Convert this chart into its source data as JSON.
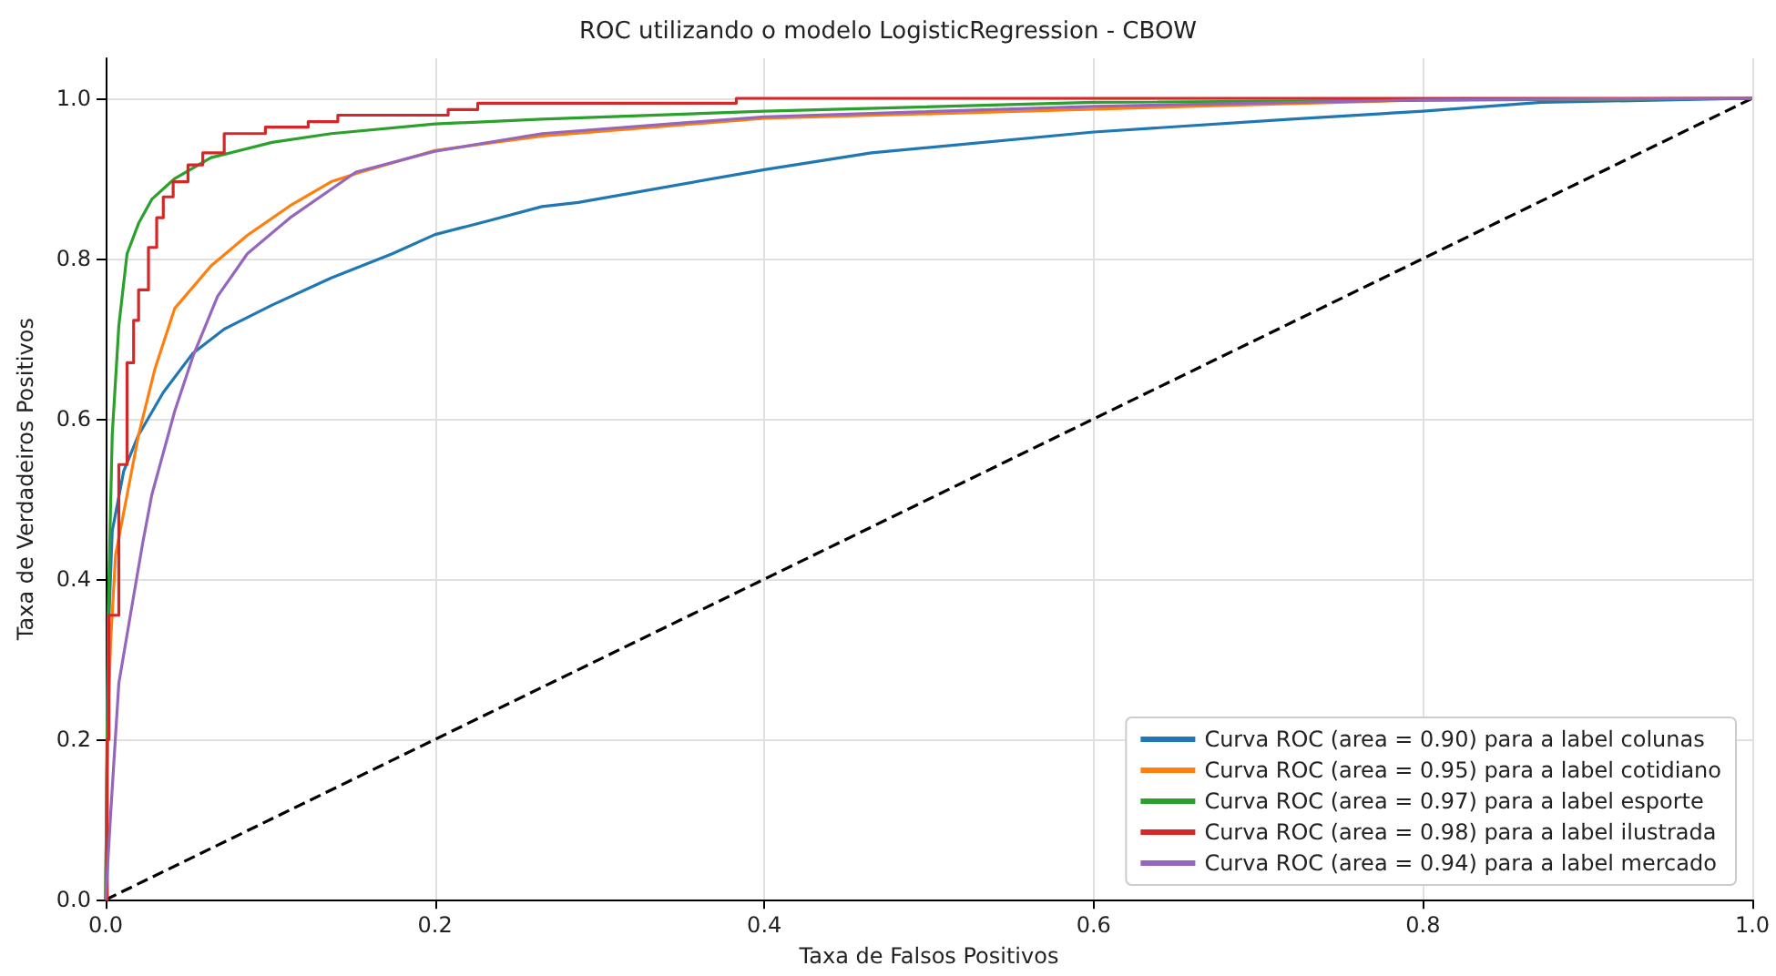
{
  "chart_data": {
    "type": "line",
    "title": "ROC utilizando o modelo LogisticRegression - CBOW",
    "xlabel": "Taxa de Falsos Positivos",
    "ylabel": "Taxa de Verdadeiros Positivos",
    "xlim": [
      0,
      1.0
    ],
    "ylim": [
      0,
      1.05
    ],
    "xticks": [
      {
        "value": 0,
        "label": "0.0"
      },
      {
        "value": 0.2,
        "label": "0.2"
      },
      {
        "value": 0.4,
        "label": "0.4"
      },
      {
        "value": 0.6,
        "label": "0.6"
      },
      {
        "value": 0.8,
        "label": "0.8"
      },
      {
        "value": 1,
        "label": "1.0"
      }
    ],
    "yticks": [
      {
        "value": 0,
        "label": "0.0"
      },
      {
        "value": 0.2,
        "label": "0.2"
      },
      {
        "value": 0.4,
        "label": "0.4"
      },
      {
        "value": 0.6,
        "label": "0.6"
      },
      {
        "value": 0.8,
        "label": "0.8"
      },
      {
        "value": 1,
        "label": "1.0"
      }
    ],
    "grid": true,
    "legend": "bottom right",
    "marker": "none",
    "line_style": "solid",
    "series": [
      {
        "name": "Curva ROC (area = 0.90) para a label colunas",
        "color": "#1f77b4",
        "x": [
          0,
          0.001,
          0.002,
          0.004,
          0.011,
          0.02,
          0.035,
          0.053,
          0.072,
          0.101,
          0.137,
          0.174,
          0.2,
          0.232,
          0.265,
          0.287,
          0.4,
          0.465,
          0.6,
          0.72,
          0.8,
          0.872,
          1.0
        ],
        "values": [
          0,
          0.25,
          0.35,
          0.46,
          0.535,
          0.58,
          0.633,
          0.682,
          0.712,
          0.742,
          0.776,
          0.806,
          0.83,
          0.847,
          0.865,
          0.87,
          0.911,
          0.932,
          0.958,
          0.974,
          0.984,
          0.995,
          1.0
        ]
      },
      {
        "name": "Curva ROC (area = 0.95) para a label cotidiano",
        "color": "#ff7f0e",
        "x": [
          0,
          0.001,
          0.003,
          0.006,
          0.013,
          0.02,
          0.03,
          0.042,
          0.064,
          0.086,
          0.112,
          0.137,
          0.155,
          0.2,
          0.265,
          0.4,
          0.6,
          0.8,
          1.0
        ],
        "values": [
          0,
          0.2,
          0.32,
          0.43,
          0.505,
          0.58,
          0.663,
          0.738,
          0.791,
          0.829,
          0.866,
          0.896,
          0.908,
          0.935,
          0.953,
          0.975,
          null,
          0.998,
          1.0
        ]
      },
      {
        "name": "Curva ROC (area = 0.97) para a label esporte",
        "color": "#2ca02c",
        "x": [
          0,
          0.001,
          0.0015,
          0.004,
          0.008,
          0.013,
          0.02,
          0.028,
          0.042,
          0.064,
          0.101,
          0.137,
          0.2,
          0.265,
          0.4,
          0.6,
          1.0
        ],
        "values": [
          0,
          0.2,
          0.355,
          0.58,
          0.716,
          0.806,
          0.844,
          0.874,
          0.9,
          0.926,
          0.945,
          0.956,
          0.968,
          0.974,
          0.984,
          0.995,
          1.0
        ]
      },
      {
        "name": "Curva ROC (area = 0.98) para a label ilustrada",
        "type": "step",
        "color": "#d62728",
        "x": [
          0,
          0.001,
          0.002,
          0.008,
          0.013,
          0.017,
          0.02,
          0.026,
          0.031,
          0.035,
          0.041,
          0.05,
          0.059,
          0.072,
          0.097,
          0.123,
          0.141,
          0.208,
          0.226,
          0.383,
          1.0
        ],
        "values": [
          0,
          0.2,
          0.355,
          0.543,
          0.67,
          0.723,
          0.761,
          0.814,
          0.851,
          0.877,
          0.896,
          0.917,
          0.932,
          0.956,
          0.964,
          0.971,
          0.979,
          0.986,
          0.994,
          1.0,
          1.0
        ]
      },
      {
        "name": "Curva ROC (area = 0.94) para a label mercado",
        "color": "#9467bd",
        "x": [
          0,
          0.003,
          0.008,
          0.015,
          0.0225,
          0.028,
          0.042,
          0.053,
          0.068,
          0.086,
          0.112,
          0.152,
          0.2,
          0.265,
          0.4,
          0.6,
          0.8,
          1.0
        ],
        "values": [
          0,
          0.106,
          0.27,
          0.355,
          0.445,
          0.505,
          0.61,
          0.678,
          0.753,
          0.806,
          0.851,
          0.908,
          0.934,
          0.956,
          0.977,
          0.99,
          0.998,
          1.0
        ]
      },
      {
        "color": "#000000",
        "line_style": "dashed",
        "x": [
          0,
          1
        ],
        "values": [
          0,
          1
        ]
      }
    ]
  }
}
